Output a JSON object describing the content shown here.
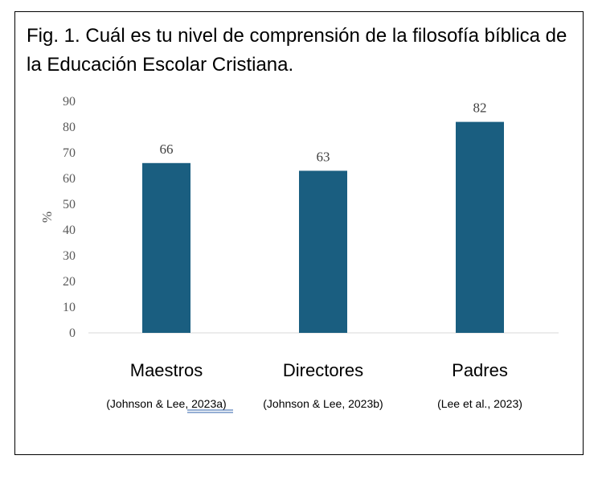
{
  "figure": {
    "title": "Fig. 1. Cuál es tu nivel de comprensión de la filosofía bíblica de la Educación Escolar Cristiana."
  },
  "chart_data": {
    "type": "bar",
    "title": "Fig. 1. Cuál es tu nivel de comprensión de la filosofía bíblica de la Educación Escolar Cristiana.",
    "categories": [
      "Maestros",
      "Directores",
      "Padres"
    ],
    "citations": [
      "(Johnson & Lee, 2023a)",
      "(Johnson & Lee, 2023b)",
      "(Lee et al., 2023)"
    ],
    "values": [
      66,
      63,
      82
    ],
    "data_labels": [
      "66",
      "63",
      "82"
    ],
    "ylabel": "%",
    "xlabel": "",
    "ylim": [
      0,
      90
    ],
    "yticks": [
      "0",
      "10",
      "20",
      "30",
      "40",
      "50",
      "60",
      "70",
      "80",
      "90"
    ],
    "grid": false,
    "bar_color": "#1a5e80"
  }
}
